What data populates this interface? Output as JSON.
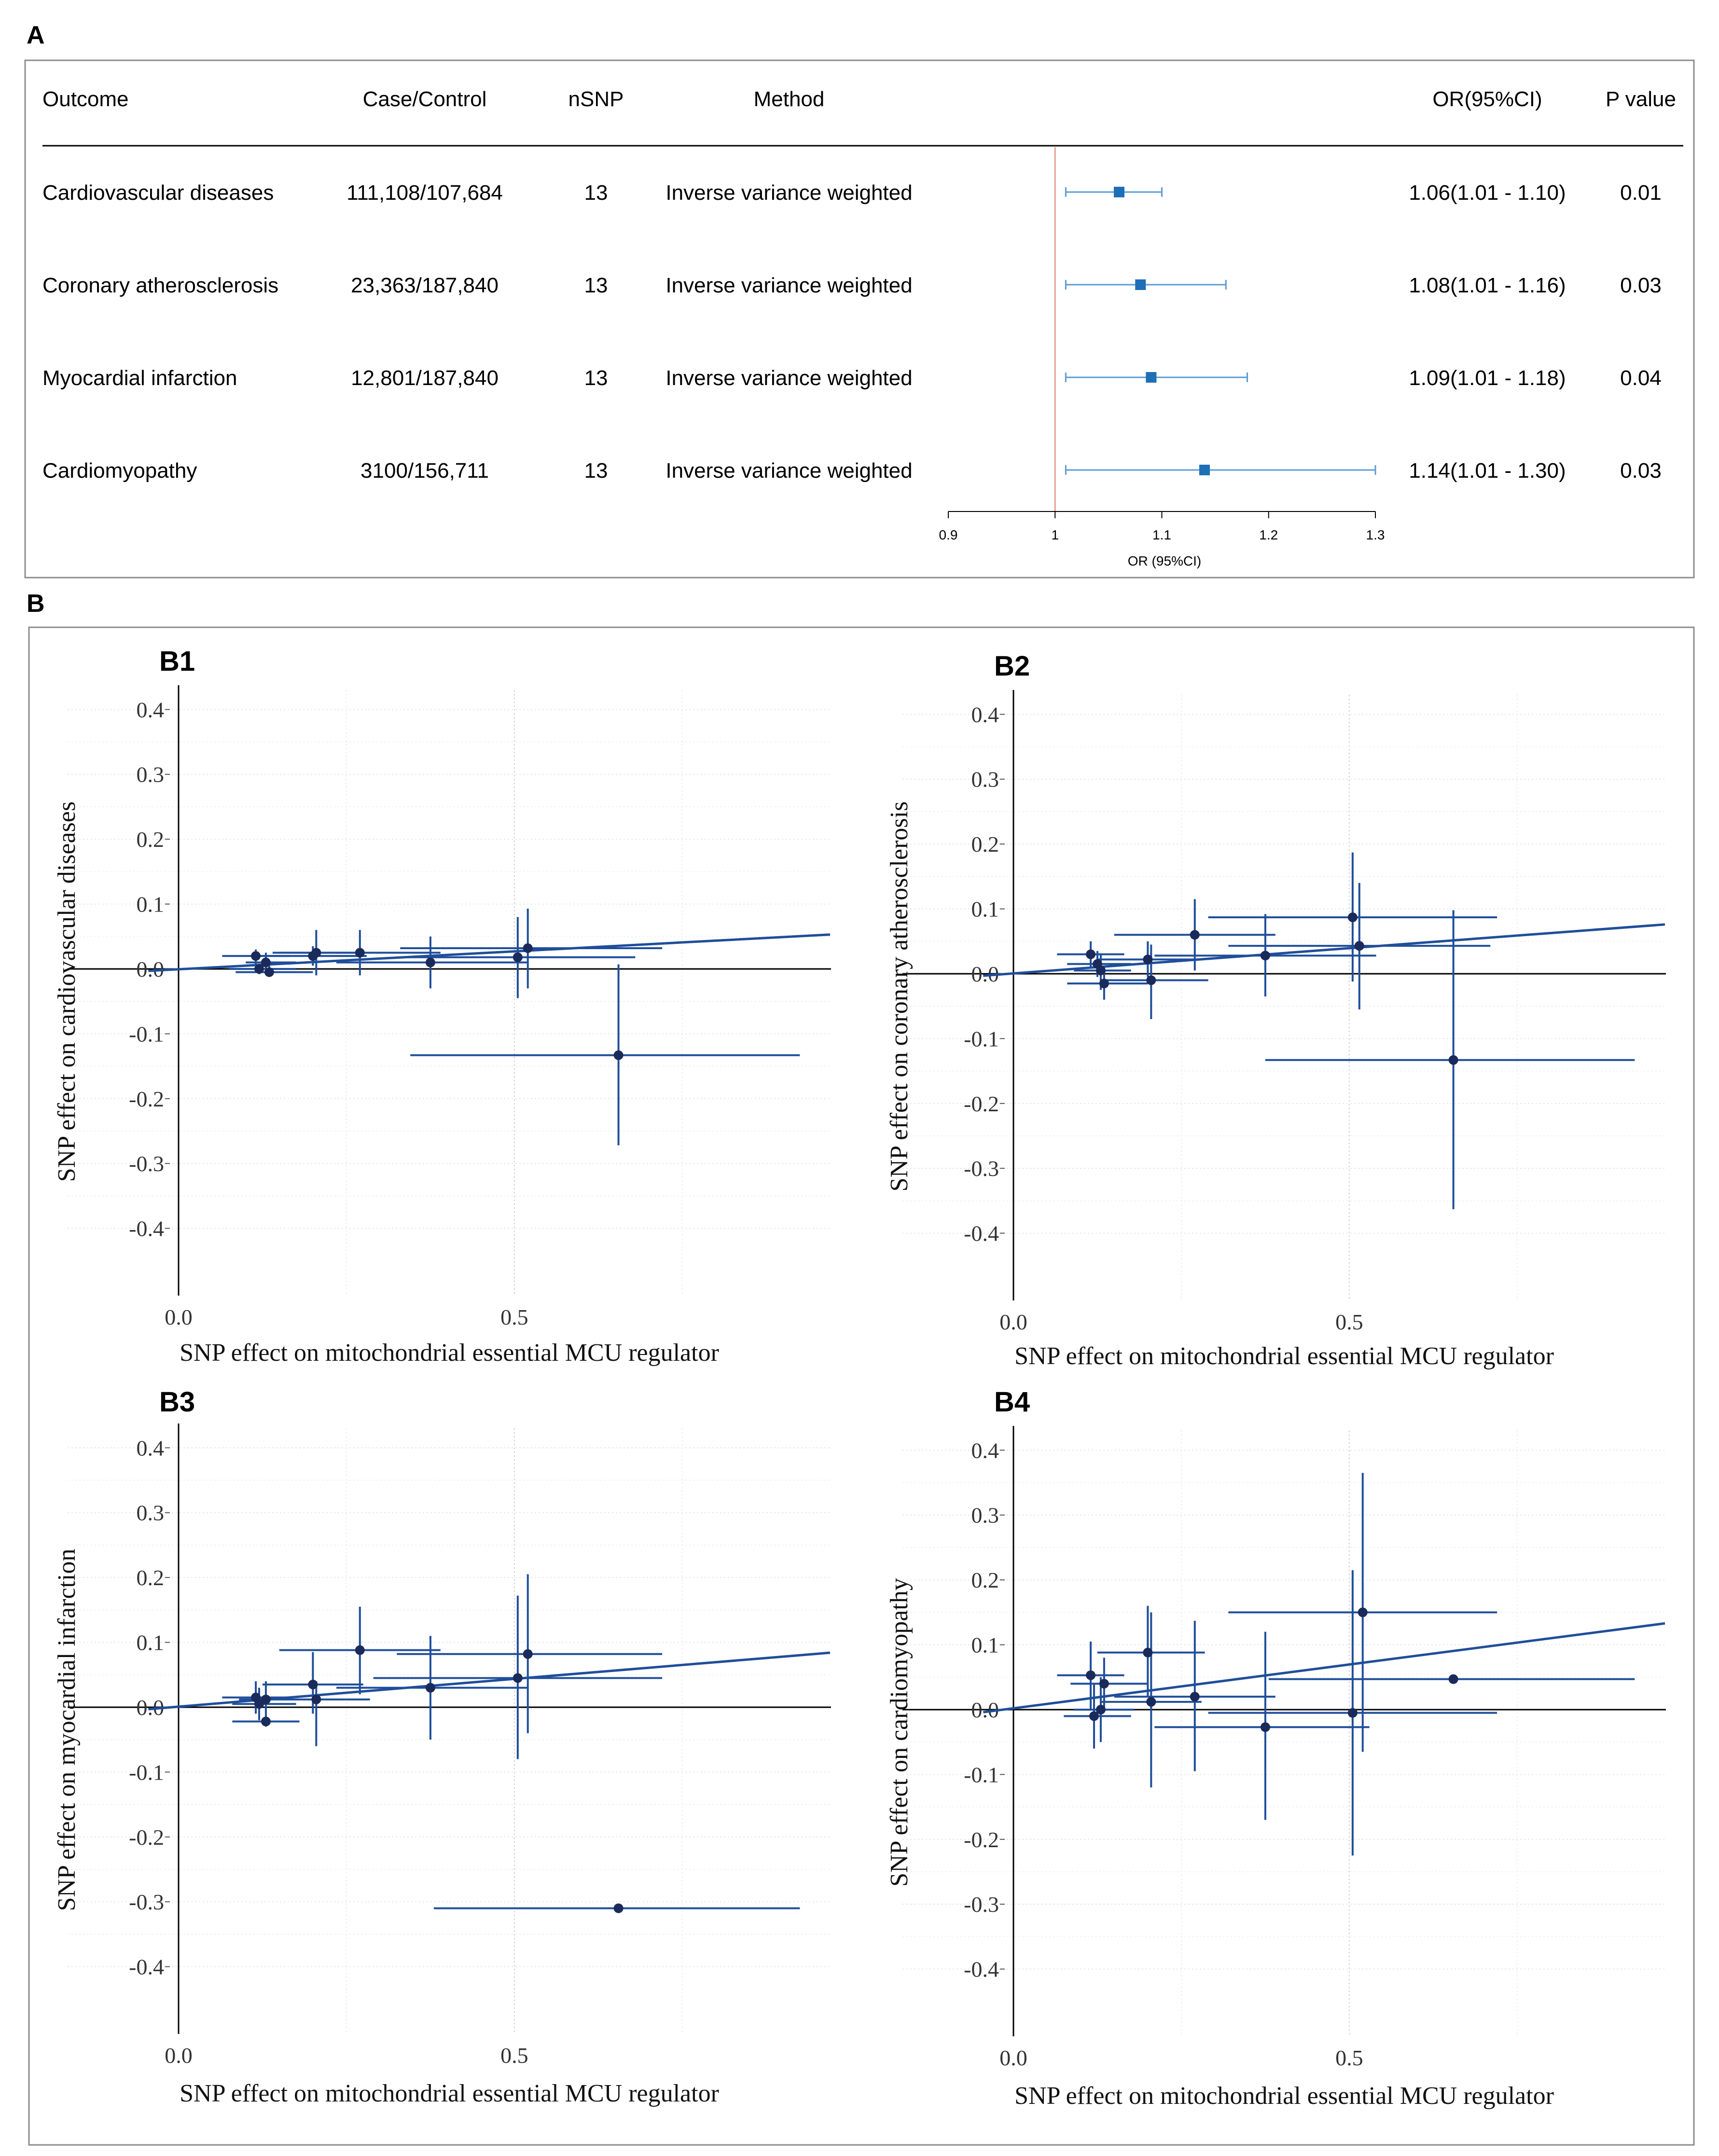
{
  "panel_a": {
    "label": "A",
    "headers": {
      "outcome": "Outcome",
      "case_control": "Case/Control",
      "nsnp": "nSNP",
      "method": "Method",
      "or": "OR(95%CI)",
      "p": "P value"
    },
    "rows": [
      {
        "outcome": "Cardiovascular diseases",
        "case_control": "111,108/107,684",
        "nsnp": "13",
        "method": "Inverse variance weighted",
        "or_text": "1.06(1.01 - 1.10)",
        "p": "0.01"
      },
      {
        "outcome": "Coronary atherosclerosis",
        "case_control": "23,363/187,840",
        "nsnp": "13",
        "method": "Inverse variance weighted",
        "or_text": "1.08(1.01 - 1.16)",
        "p": "0.03"
      },
      {
        "outcome": "Myocardial infarction",
        "case_control": "12,801/187,840",
        "nsnp": "13",
        "method": "Inverse variance weighted",
        "or_text": "1.09(1.01 - 1.18)",
        "p": "0.04"
      },
      {
        "outcome": "Cardiomyopathy",
        "case_control": "3100/156,711",
        "nsnp": "13",
        "method": "Inverse variance weighted",
        "or_text": "1.14(1.01 - 1.30)",
        "p": "0.03"
      }
    ],
    "axis_label": "OR (95%CI)"
  },
  "panel_b": {
    "label": "B"
  },
  "colors": {
    "point": "#1a2a5a",
    "line": "#1f4e9a",
    "forest_square": "#1e6fb5",
    "forest_ci": "#5b9bd5",
    "ref_line": "#e8a090",
    "frame": "#8c8c8c"
  },
  "chart_data": [
    {
      "id": "forest",
      "type": "forest",
      "title": "",
      "xlabel": "OR (95%CI)",
      "xlim": [
        0.9,
        1.3
      ],
      "xticks": [
        0.9,
        1,
        1.1,
        1.2,
        1.3
      ],
      "xtick_labels": [
        "0.9",
        "1",
        "1.1",
        "1.2",
        "1.3"
      ],
      "reference": 1,
      "rows": [
        {
          "label": "Cardiovascular diseases",
          "or": 1.06,
          "lo": 1.01,
          "hi": 1.1
        },
        {
          "label": "Coronary atherosclerosis",
          "or": 1.08,
          "lo": 1.01,
          "hi": 1.16
        },
        {
          "label": "Myocardial infarction",
          "or": 1.09,
          "lo": 1.01,
          "hi": 1.18
        },
        {
          "label": "Cardiomyopathy",
          "or": 1.14,
          "lo": 1.01,
          "hi": 1.3
        }
      ]
    },
    {
      "id": "B1",
      "type": "scatter",
      "label": "B1",
      "xlabel": "SNP effect on mitochondrial essential MCU regulator",
      "ylabel": "SNP effect on cardiovascular diseases",
      "xlim": [
        0,
        0.97
      ],
      "ylim": [
        -0.5,
        0.43
      ],
      "xticks": [
        0,
        0.5
      ],
      "xtick_labels": [
        "0.0",
        "0.5"
      ],
      "yticks": [
        -0.4,
        -0.3,
        -0.2,
        -0.1,
        0,
        0.1,
        0.2,
        0.3,
        0.4
      ],
      "ytick_labels": [
        "-0.4",
        "-0.3",
        "-0.2",
        "-0.1",
        "0.0",
        "0.1",
        "0.2",
        "0.3",
        "0.4"
      ],
      "fit": {
        "x": [
          -0.045,
          0.97
        ],
        "y": [
          -0.003,
          0.053
        ]
      },
      "points": [
        {
          "x": 0.115,
          "y": 0.02,
          "xlo": 0.065,
          "xhi": 0.165,
          "ylo": 0.005,
          "yhi": 0.03
        },
        {
          "x": 0.12,
          "y": 0.0,
          "xlo": 0.075,
          "xhi": 0.175,
          "ylo": -0.008,
          "yhi": 0.008
        },
        {
          "x": 0.13,
          "y": 0.01,
          "xlo": 0.1,
          "xhi": 0.175,
          "ylo": -0.005,
          "yhi": 0.025
        },
        {
          "x": 0.135,
          "y": -0.005,
          "xlo": 0.085,
          "xhi": 0.2,
          "ylo": -0.012,
          "yhi": 0.005
        },
        {
          "x": 0.2,
          "y": 0.02,
          "xlo": 0.12,
          "xhi": 0.28,
          "ylo": 0.005,
          "yhi": 0.035
        },
        {
          "x": 0.205,
          "y": 0.025,
          "xlo": 0.14,
          "xhi": 0.27,
          "ylo": -0.01,
          "yhi": 0.06
        },
        {
          "x": 0.27,
          "y": 0.025,
          "xlo": 0.15,
          "xhi": 0.39,
          "ylo": -0.01,
          "yhi": 0.06
        },
        {
          "x": 0.375,
          "y": 0.01,
          "xlo": 0.235,
          "xhi": 0.52,
          "ylo": -0.03,
          "yhi": 0.05
        },
        {
          "x": 0.505,
          "y": 0.018,
          "xlo": 0.33,
          "xhi": 0.68,
          "ylo": -0.045,
          "yhi": 0.08
        },
        {
          "x": 0.52,
          "y": 0.032,
          "xlo": 0.33,
          "xhi": 0.72,
          "ylo": -0.03,
          "yhi": 0.093
        },
        {
          "x": 0.655,
          "y": -0.133,
          "xlo": 0.345,
          "xhi": 0.925,
          "ylo": -0.272,
          "yhi": 0.007
        }
      ]
    },
    {
      "id": "B2",
      "type": "scatter",
      "label": "B2",
      "xlabel": "SNP effect on mitochondrial essential MCU regulator",
      "ylabel": "SNP effect on coronary atherosclerosis",
      "xlim": [
        0,
        0.97
      ],
      "ylim": [
        -0.5,
        0.43
      ],
      "xticks": [
        0,
        0.5
      ],
      "xtick_labels": [
        "0.0",
        "0.5"
      ],
      "yticks": [
        -0.4,
        -0.3,
        -0.2,
        -0.1,
        0,
        0.1,
        0.2,
        0.3,
        0.4
      ],
      "ytick_labels": [
        "-0.4",
        "-0.3",
        "-0.2",
        "-0.1",
        "0.0",
        "0.1",
        "0.2",
        "0.3",
        "0.4"
      ],
      "fit": {
        "x": [
          -0.045,
          0.97
        ],
        "y": [
          -0.003,
          0.076
        ]
      },
      "points": [
        {
          "x": 0.115,
          "y": 0.03,
          "xlo": 0.065,
          "xhi": 0.165,
          "ylo": 0.01,
          "yhi": 0.05
        },
        {
          "x": 0.125,
          "y": 0.015,
          "xlo": 0.08,
          "xhi": 0.175,
          "ylo": -0.005,
          "yhi": 0.035
        },
        {
          "x": 0.13,
          "y": 0.005,
          "xlo": 0.09,
          "xhi": 0.175,
          "ylo": -0.025,
          "yhi": 0.03
        },
        {
          "x": 0.135,
          "y": -0.015,
          "xlo": 0.08,
          "xhi": 0.2,
          "ylo": -0.04,
          "yhi": 0.01
        },
        {
          "x": 0.2,
          "y": 0.022,
          "xlo": 0.125,
          "xhi": 0.27,
          "ylo": -0.005,
          "yhi": 0.05
        },
        {
          "x": 0.205,
          "y": -0.01,
          "xlo": 0.13,
          "xhi": 0.29,
          "ylo": -0.07,
          "yhi": 0.045
        },
        {
          "x": 0.27,
          "y": 0.06,
          "xlo": 0.15,
          "xhi": 0.39,
          "ylo": 0.005,
          "yhi": 0.115
        },
        {
          "x": 0.375,
          "y": 0.028,
          "xlo": 0.21,
          "xhi": 0.54,
          "ylo": -0.035,
          "yhi": 0.092
        },
        {
          "x": 0.505,
          "y": 0.087,
          "xlo": 0.29,
          "xhi": 0.72,
          "ylo": -0.012,
          "yhi": 0.187
        },
        {
          "x": 0.515,
          "y": 0.043,
          "xlo": 0.32,
          "xhi": 0.71,
          "ylo": -0.055,
          "yhi": 0.14
        },
        {
          "x": 0.655,
          "y": -0.133,
          "xlo": 0.375,
          "xhi": 0.925,
          "ylo": -0.363,
          "yhi": 0.098
        }
      ]
    },
    {
      "id": "B3",
      "type": "scatter",
      "label": "B3",
      "xlabel": "SNP effect on mitochondrial essential MCU regulator",
      "ylabel": "SNP effect on myocardial infarction",
      "xlim": [
        0,
        0.97
      ],
      "ylim": [
        -0.5,
        0.43
      ],
      "xticks": [
        0,
        0.5
      ],
      "xtick_labels": [
        "0.0",
        "0.5"
      ],
      "yticks": [
        -0.4,
        -0.3,
        -0.2,
        -0.1,
        0,
        0.1,
        0.2,
        0.3,
        0.4
      ],
      "ytick_labels": [
        "-0.4",
        "-0.3",
        "-0.2",
        "-0.1",
        "0.0",
        "0.1",
        "0.2",
        "0.3",
        "0.4"
      ],
      "fit": {
        "x": [
          -0.045,
          0.97
        ],
        "y": [
          -0.003,
          0.084
        ]
      },
      "points": [
        {
          "x": 0.115,
          "y": 0.015,
          "xlo": 0.065,
          "xhi": 0.165,
          "ylo": -0.01,
          "yhi": 0.04
        },
        {
          "x": 0.12,
          "y": 0.005,
          "xlo": 0.08,
          "xhi": 0.175,
          "ylo": -0.02,
          "yhi": 0.03
        },
        {
          "x": 0.13,
          "y": 0.012,
          "xlo": 0.09,
          "xhi": 0.18,
          "ylo": -0.01,
          "yhi": 0.04
        },
        {
          "x": 0.13,
          "y": -0.022,
          "xlo": 0.08,
          "xhi": 0.18,
          "ylo": -0.03,
          "yhi": -0.01
        },
        {
          "x": 0.2,
          "y": 0.035,
          "xlo": 0.125,
          "xhi": 0.275,
          "ylo": -0.01,
          "yhi": 0.085
        },
        {
          "x": 0.205,
          "y": 0.012,
          "xlo": 0.13,
          "xhi": 0.285,
          "ylo": -0.06,
          "yhi": 0.04
        },
        {
          "x": 0.27,
          "y": 0.088,
          "xlo": 0.15,
          "xhi": 0.39,
          "ylo": 0.02,
          "yhi": 0.155
        },
        {
          "x": 0.375,
          "y": 0.03,
          "xlo": 0.235,
          "xhi": 0.52,
          "ylo": -0.05,
          "yhi": 0.11
        },
        {
          "x": 0.505,
          "y": 0.045,
          "xlo": 0.29,
          "xhi": 0.72,
          "ylo": -0.08,
          "yhi": 0.172
        },
        {
          "x": 0.52,
          "y": 0.082,
          "xlo": 0.325,
          "xhi": 0.72,
          "ylo": -0.04,
          "yhi": 0.205
        },
        {
          "x": 0.655,
          "y": -0.31,
          "xlo": 0.38,
          "xhi": 0.925,
          "ylo": -0.31,
          "yhi": -0.31
        }
      ]
    },
    {
      "id": "B4",
      "type": "scatter",
      "label": "B4",
      "xlabel": "SNP effect on mitochondrial essential MCU regulator",
      "ylabel": "SNP effect on cardiomyopathy",
      "xlim": [
        0,
        0.97
      ],
      "ylim": [
        -0.5,
        0.43
      ],
      "xticks": [
        0,
        0.5
      ],
      "xtick_labels": [
        "0.0",
        "0.5"
      ],
      "yticks": [
        -0.4,
        -0.3,
        -0.2,
        -0.1,
        0,
        0.1,
        0.2,
        0.3,
        0.4
      ],
      "ytick_labels": [
        "-0.4",
        "-0.3",
        "-0.2",
        "-0.1",
        "0.0",
        "0.1",
        "0.2",
        "0.3",
        "0.4"
      ],
      "fit": {
        "x": [
          -0.045,
          0.97
        ],
        "y": [
          -0.004,
          0.133
        ]
      },
      "points": [
        {
          "x": 0.115,
          "y": 0.053,
          "xlo": 0.065,
          "xhi": 0.165,
          "ylo": 0.0,
          "yhi": 0.105
        },
        {
          "x": 0.12,
          "y": -0.01,
          "xlo": 0.075,
          "xhi": 0.175,
          "ylo": -0.06,
          "yhi": 0.04
        },
        {
          "x": 0.13,
          "y": 0.0,
          "xlo": 0.09,
          "xhi": 0.18,
          "ylo": -0.05,
          "yhi": 0.05
        },
        {
          "x": 0.135,
          "y": 0.04,
          "xlo": 0.085,
          "xhi": 0.2,
          "ylo": 0.0,
          "yhi": 0.08
        },
        {
          "x": 0.2,
          "y": 0.088,
          "xlo": 0.125,
          "xhi": 0.285,
          "ylo": 0.02,
          "yhi": 0.16
        },
        {
          "x": 0.205,
          "y": 0.012,
          "xlo": 0.13,
          "xhi": 0.28,
          "ylo": -0.12,
          "yhi": 0.15
        },
        {
          "x": 0.27,
          "y": 0.02,
          "xlo": 0.15,
          "xhi": 0.39,
          "ylo": -0.095,
          "yhi": 0.137
        },
        {
          "x": 0.375,
          "y": -0.027,
          "xlo": 0.21,
          "xhi": 0.53,
          "ylo": -0.17,
          "yhi": 0.12
        },
        {
          "x": 0.505,
          "y": -0.005,
          "xlo": 0.29,
          "xhi": 0.72,
          "ylo": -0.225,
          "yhi": 0.215
        },
        {
          "x": 0.52,
          "y": 0.15,
          "xlo": 0.32,
          "xhi": 0.72,
          "ylo": -0.065,
          "yhi": 0.365
        },
        {
          "x": 0.655,
          "y": 0.047,
          "xlo": 0.38,
          "xhi": 0.925,
          "ylo": 0.047,
          "yhi": 0.047
        }
      ]
    }
  ]
}
